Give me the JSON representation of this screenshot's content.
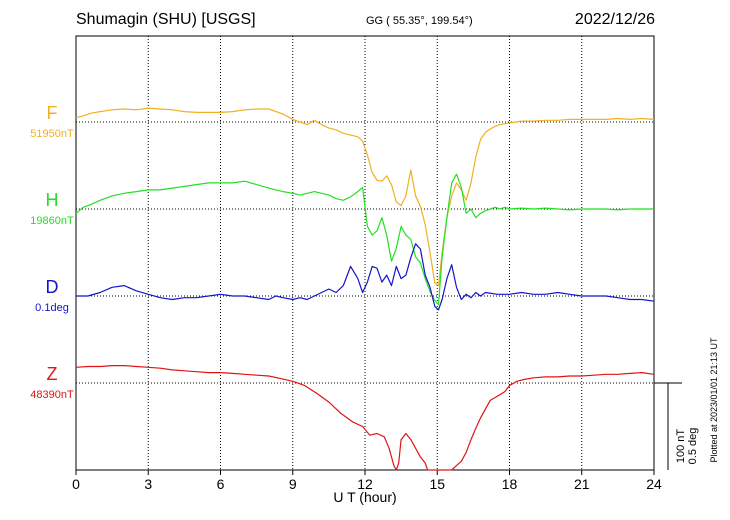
{
  "header": {
    "station": "Shumagin (SHU)  [USGS]",
    "coords": "GG ( 55.35°, 199.54°)",
    "date": "2022/12/26"
  },
  "footer": {
    "plotted": "Plotted at 2023/01/01 21:13 UT"
  },
  "scale_bar": {
    "nt": "100 nT",
    "deg": "0.5 deg"
  },
  "chart_data": {
    "type": "line",
    "title": "Shumagin (SHU)  [USGS]",
    "xlabel": "U T (hour)",
    "xlim": [
      0,
      24
    ],
    "xticks": [
      0,
      3,
      6,
      9,
      12,
      15,
      18,
      21,
      24
    ],
    "grid": true,
    "scale": "100 nT / 0.5 deg per division",
    "series": [
      {
        "name": "F",
        "baseline_label": "51950nT",
        "color": "#f0b020",
        "units": "nT",
        "baseline": 51950,
        "x": [
          0,
          0.3,
          0.6,
          1,
          1.5,
          2,
          2.5,
          3,
          3.5,
          4,
          4.5,
          5,
          5.5,
          6,
          6.5,
          7,
          7.5,
          8,
          8.3,
          8.6,
          9,
          9.3,
          9.6,
          9.9,
          10.2,
          10.5,
          10.8,
          11.1,
          11.4,
          11.7,
          11.9,
          12.1,
          12.3,
          12.5,
          12.7,
          12.9,
          13.1,
          13.3,
          13.5,
          13.7,
          13.9,
          14.1,
          14.3,
          14.5,
          14.7,
          14.9,
          15.05,
          15.2,
          15.4,
          15.6,
          15.8,
          16,
          16.2,
          16.4,
          16.6,
          16.8,
          17,
          17.2,
          17.4,
          17.6,
          17.8,
          18,
          18.5,
          19,
          19.5,
          20,
          20.5,
          21,
          21.5,
          22,
          22.5,
          23,
          23.5,
          24
        ],
        "values": [
          5,
          7,
          10,
          12,
          14,
          15,
          14,
          16,
          15,
          14,
          12,
          11,
          11,
          11,
          12,
          14,
          15,
          15,
          12,
          9,
          3,
          0,
          -3,
          2,
          -3,
          -7,
          -9,
          -13,
          -15,
          -17,
          -22,
          -38,
          -58,
          -67,
          -68,
          -62,
          -72,
          -92,
          -96,
          -85,
          -55,
          -85,
          -97,
          -118,
          -150,
          -185,
          -188,
          -150,
          -110,
          -85,
          -70,
          -78,
          -90,
          -70,
          -40,
          -20,
          -12,
          -8,
          -5,
          -3,
          -2,
          -1,
          1,
          1,
          2,
          2,
          3,
          3,
          3,
          3,
          4,
          3,
          4,
          3
        ],
        "unit_note": "nT offset from baseline (100 nT per division)"
      },
      {
        "name": "H",
        "baseline_label": "19860nT",
        "color": "#22e022",
        "units": "nT",
        "baseline": 19860,
        "x": [
          0,
          0.3,
          0.6,
          1,
          1.5,
          2,
          2.5,
          3,
          3.5,
          4,
          4.5,
          5,
          5.5,
          6,
          6.5,
          7,
          7.5,
          8,
          8.3,
          8.6,
          9,
          9.3,
          9.6,
          9.9,
          10.2,
          10.5,
          10.8,
          11.1,
          11.4,
          11.7,
          11.9,
          12.1,
          12.3,
          12.5,
          12.7,
          12.9,
          13.1,
          13.3,
          13.5,
          13.7,
          13.9,
          14.1,
          14.3,
          14.5,
          14.7,
          14.9,
          15.05,
          15.2,
          15.4,
          15.6,
          15.8,
          16,
          16.2,
          16.4,
          16.6,
          16.8,
          17,
          17.2,
          17.4,
          17.6,
          17.8,
          18,
          18.5,
          19,
          19.5,
          20,
          20.5,
          21,
          21.5,
          22,
          22.5,
          23,
          23.5,
          24
        ],
        "values": [
          -5,
          2,
          5,
          10,
          15,
          18,
          20,
          22,
          22,
          24,
          26,
          28,
          30,
          30,
          30,
          32,
          28,
          24,
          22,
          20,
          18,
          16,
          18,
          20,
          18,
          16,
          12,
          10,
          14,
          20,
          25,
          -20,
          -30,
          -25,
          -10,
          -30,
          -60,
          -45,
          -20,
          -30,
          -35,
          -55,
          -62,
          -80,
          -95,
          -105,
          -110,
          -55,
          -10,
          30,
          40,
          25,
          -5,
          0,
          -10,
          -5,
          -2,
          0,
          2,
          0,
          2,
          0,
          1,
          0,
          1,
          0,
          -1,
          0,
          0,
          0,
          -1,
          0,
          0,
          0
        ],
        "unit_note": "nT offset from baseline (100 nT per division)"
      },
      {
        "name": "D",
        "baseline_label": "0.1deg",
        "color": "#1414cc",
        "units": "deg",
        "baseline": 0.1,
        "x": [
          0,
          0.5,
          1,
          1.5,
          2,
          2.5,
          3,
          3.5,
          4,
          4.5,
          5,
          5.5,
          6,
          6.5,
          7,
          7.5,
          8,
          8.3,
          8.6,
          9,
          9.3,
          9.6,
          9.9,
          10.2,
          10.5,
          10.8,
          11.1,
          11.4,
          11.7,
          11.9,
          12.1,
          12.3,
          12.5,
          12.7,
          12.9,
          13.1,
          13.3,
          13.5,
          13.7,
          13.9,
          14.1,
          14.3,
          14.5,
          14.7,
          14.9,
          15.05,
          15.2,
          15.4,
          15.6,
          15.8,
          16,
          16.2,
          16.4,
          16.6,
          16.8,
          17,
          17.5,
          18,
          18.5,
          19,
          19.5,
          20,
          20.5,
          21,
          21.5,
          22,
          22.5,
          23,
          23.5,
          24
        ],
        "values": [
          0,
          0,
          0.02,
          0.05,
          0.06,
          0.03,
          0.01,
          -0.01,
          -0.02,
          -0.01,
          -0.01,
          0,
          0.01,
          0,
          0,
          -0.01,
          -0.02,
          0,
          -0.01,
          -0.02,
          -0.01,
          -0.02,
          0,
          0.02,
          0.04,
          0.02,
          0.06,
          0.17,
          0.1,
          0.02,
          0.08,
          0.17,
          0.16,
          0.08,
          0.12,
          0.06,
          0.17,
          0.1,
          0.12,
          0.22,
          0.3,
          0.27,
          0.12,
          0.05,
          -0.06,
          -0.08,
          -0.02,
          0.1,
          0.18,
          0.05,
          -0.02,
          0.01,
          -0.01,
          0.02,
          0,
          0.02,
          0.01,
          0.01,
          0.02,
          0.01,
          0.01,
          0.02,
          0.01,
          0,
          0,
          0,
          -0.01,
          -0.02,
          -0.02,
          -0.03
        ],
        "unit_note": "deg offset from baseline (0.5 deg per division)"
      },
      {
        "name": "Z",
        "baseline_label": "48390nT",
        "color": "#e01414",
        "units": "nT",
        "baseline": 48390,
        "x": [
          0,
          0.5,
          1,
          1.5,
          2,
          2.5,
          3,
          3.5,
          4,
          4.5,
          5,
          5.5,
          6,
          6.5,
          7,
          7.5,
          8,
          8.5,
          9,
          9.5,
          10,
          10.5,
          11,
          11.5,
          11.9,
          12.2,
          12.5,
          12.8,
          13,
          13.2,
          13.3,
          13.4,
          13.5,
          13.7,
          13.9,
          14.1,
          14.3,
          14.5,
          14.6,
          15.6,
          15.8,
          16,
          16.2,
          16.4,
          16.6,
          16.8,
          17,
          17.2,
          17.5,
          17.8,
          18,
          18.3,
          18.6,
          19,
          19.5,
          20,
          20.5,
          21,
          21.5,
          22,
          22.5,
          23,
          23.5,
          24
        ],
        "values": [
          18,
          19,
          19,
          20,
          20,
          19,
          18,
          17,
          15,
          14,
          13,
          12,
          12,
          11,
          10,
          9,
          8,
          5,
          2,
          -3,
          -12,
          -22,
          -35,
          -45,
          -50,
          -60,
          -58,
          -62,
          -75,
          -95,
          -100,
          -92,
          -65,
          -58,
          -65,
          -75,
          -85,
          -92,
          -100,
          -100,
          -95,
          -90,
          -80,
          -65,
          -52,
          -40,
          -30,
          -20,
          -15,
          -10,
          -3,
          2,
          4,
          6,
          7,
          7,
          8,
          8,
          9,
          10,
          10,
          11,
          12,
          10
        ],
        "unit_note": "nT offset from baseline (100 nT per division)"
      }
    ]
  }
}
